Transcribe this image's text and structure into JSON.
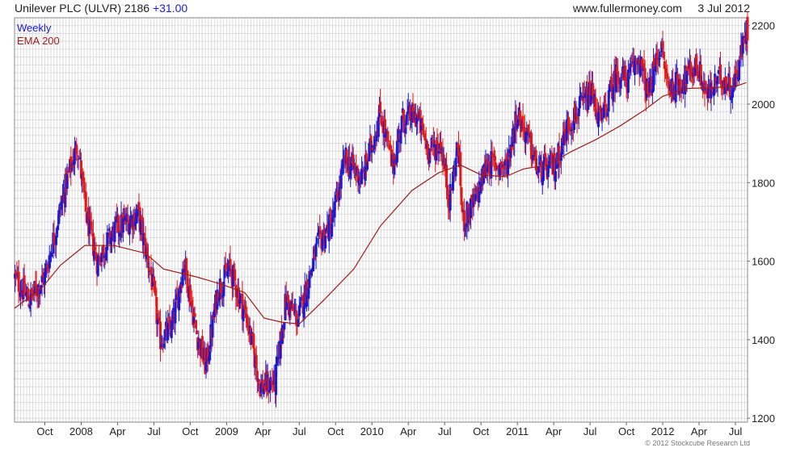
{
  "header": {
    "name": "Unilever PLC (ULVR)",
    "price": "2186",
    "change": "+31.00",
    "source": "www.fullermoney.com",
    "date": "3 Jul 2012"
  },
  "copyright": "© 2012 Stockcube Research Ltd",
  "colors": {
    "up": "#1a1ad4",
    "down": "#e01818",
    "ema": "#9b1d1d",
    "grid": "#dcdcdc",
    "frame": "#888888"
  },
  "chart_data": {
    "type": "candlestick",
    "title": "Unilever PLC (ULVR)",
    "legend": [
      {
        "label": "Weekly",
        "color": "#1a1ad4"
      },
      {
        "label": "EMA 200",
        "color": "#9b1d1d"
      }
    ],
    "legend_position": "top-left",
    "ylim": [
      1190,
      2220
    ],
    "yticks": [
      1200,
      1400,
      1600,
      1800,
      2000,
      2200
    ],
    "y_axis_side": "right",
    "grid": true,
    "xlim": [
      0,
      60.5
    ],
    "xticks": [
      {
        "pos": 2.5,
        "label": "Oct"
      },
      {
        "pos": 5.5,
        "label": "2008"
      },
      {
        "pos": 8.5,
        "label": "Apr"
      },
      {
        "pos": 11.5,
        "label": "Jul"
      },
      {
        "pos": 14.5,
        "label": "Oct"
      },
      {
        "pos": 17.5,
        "label": "2009"
      },
      {
        "pos": 20.5,
        "label": "Apr"
      },
      {
        "pos": 23.5,
        "label": "Jul"
      },
      {
        "pos": 26.5,
        "label": "Oct"
      },
      {
        "pos": 29.5,
        "label": "2010"
      },
      {
        "pos": 32.5,
        "label": "Apr"
      },
      {
        "pos": 35.5,
        "label": "Jul"
      },
      {
        "pos": 38.5,
        "label": "Oct"
      },
      {
        "pos": 41.5,
        "label": "2011"
      },
      {
        "pos": 44.5,
        "label": "Apr"
      },
      {
        "pos": 47.5,
        "label": "Jul"
      },
      {
        "pos": 50.5,
        "label": "Oct"
      },
      {
        "pos": 53.5,
        "label": "2012"
      },
      {
        "pos": 56.5,
        "label": "Apr"
      },
      {
        "pos": 59.5,
        "label": "Jul"
      }
    ],
    "price_path": [
      [
        0,
        1560
      ],
      [
        1.2,
        1500
      ],
      [
        2.5,
        1560
      ],
      [
        4.2,
        1790
      ],
      [
        5.2,
        1900
      ],
      [
        5.9,
        1720
      ],
      [
        6.8,
        1600
      ],
      [
        8.3,
        1680
      ],
      [
        10.2,
        1720
      ],
      [
        11.3,
        1560
      ],
      [
        12,
        1400
      ],
      [
        13,
        1430
      ],
      [
        14,
        1600
      ],
      [
        15,
        1420
      ],
      [
        15.8,
        1330
      ],
      [
        16.8,
        1530
      ],
      [
        17.8,
        1580
      ],
      [
        19.2,
        1450
      ],
      [
        20.3,
        1280
      ],
      [
        21.5,
        1290
      ],
      [
        22.4,
        1500
      ],
      [
        23.4,
        1450
      ],
      [
        25,
        1640
      ],
      [
        26.2,
        1700
      ],
      [
        27.3,
        1860
      ],
      [
        28.7,
        1810
      ],
      [
        30.2,
        1980
      ],
      [
        31.2,
        1840
      ],
      [
        32,
        1960
      ],
      [
        33.2,
        1970
      ],
      [
        34.2,
        1880
      ],
      [
        35.2,
        1900
      ],
      [
        35.9,
        1750
      ],
      [
        36.6,
        1900
      ],
      [
        37,
        1700
      ],
      [
        38,
        1750
      ],
      [
        39,
        1850
      ],
      [
        40.6,
        1840
      ],
      [
        41.5,
        1980
      ],
      [
        42.5,
        1900
      ],
      [
        43.2,
        1830
      ],
      [
        44.6,
        1840
      ],
      [
        45.7,
        1950
      ],
      [
        46.5,
        1980
      ],
      [
        47.6,
        2030
      ],
      [
        48.4,
        1950
      ],
      [
        49.7,
        2080
      ],
      [
        50.6,
        2060
      ],
      [
        51.5,
        2120
      ],
      [
        52.3,
        2020
      ],
      [
        53.3,
        2150
      ],
      [
        54,
        2040
      ],
      [
        55.2,
        2060
      ],
      [
        56.3,
        2100
      ],
      [
        57.2,
        2020
      ],
      [
        58.3,
        2070
      ],
      [
        59.3,
        2040
      ],
      [
        60.4,
        2186
      ]
    ],
    "ema_path": [
      [
        0,
        1480
      ],
      [
        2.2,
        1530
      ],
      [
        3.8,
        1590
      ],
      [
        5.8,
        1640
      ],
      [
        8.2,
        1640
      ],
      [
        10.8,
        1620
      ],
      [
        12.3,
        1580
      ],
      [
        15,
        1560
      ],
      [
        17.2,
        1540
      ],
      [
        19,
        1520
      ],
      [
        20.6,
        1455
      ],
      [
        22,
        1445
      ],
      [
        23.5,
        1440
      ],
      [
        25.5,
        1500
      ],
      [
        28,
        1580
      ],
      [
        30.2,
        1690
      ],
      [
        32.8,
        1780
      ],
      [
        35,
        1825
      ],
      [
        36.8,
        1845
      ],
      [
        38.5,
        1820
      ],
      [
        40.5,
        1815
      ],
      [
        42,
        1835
      ],
      [
        44,
        1845
      ],
      [
        46,
        1880
      ],
      [
        48,
        1910
      ],
      [
        50,
        1945
      ],
      [
        52,
        1985
      ],
      [
        53.5,
        2020
      ],
      [
        55.5,
        2040
      ],
      [
        57.5,
        2042
      ],
      [
        59.5,
        2045
      ],
      [
        60.4,
        2055
      ]
    ]
  }
}
